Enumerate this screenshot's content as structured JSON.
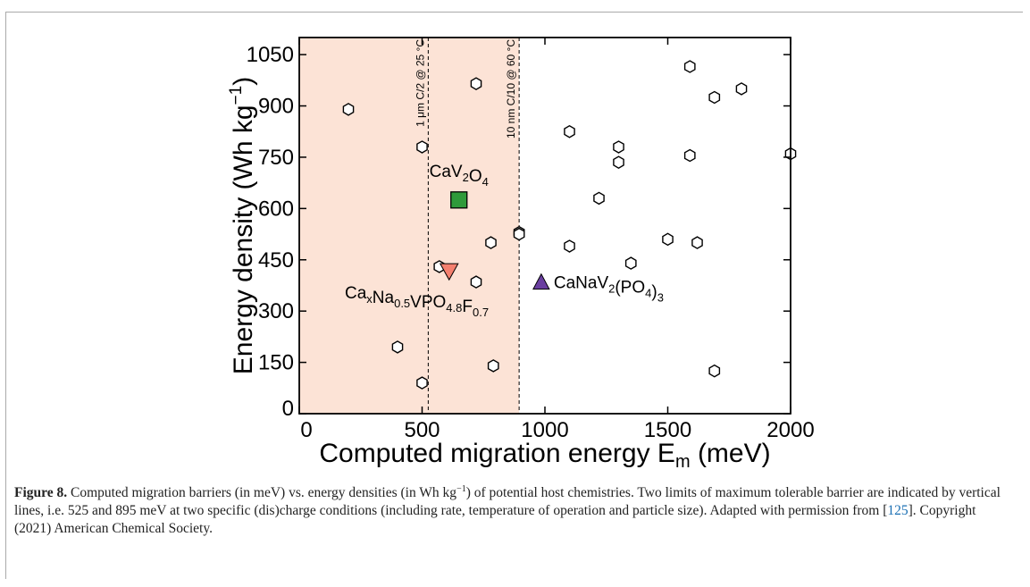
{
  "chart_data": {
    "type": "scatter",
    "xlabel_main": "Computed migration energy E",
    "xlabel_sub": "m",
    "xlabel_unit": "(meV)",
    "ylabel": "Energy density (Wh kg",
    "ylabel_sup": "−1",
    "ylabel_close": ")",
    "xlim": [
      0,
      2000
    ],
    "ylim": [
      0,
      1100
    ],
    "xticks": [
      0,
      500,
      1000,
      1500,
      2000
    ],
    "yticks": [
      0,
      150,
      300,
      450,
      600,
      750,
      900,
      1050
    ],
    "shaded_region": {
      "x_start": 0,
      "x_end": 895,
      "color": "#fce3d6"
    },
    "vertical_lines": [
      {
        "x": 525,
        "label": "1 μm C/2 @ 25 °C"
      },
      {
        "x": 895,
        "label": "10 nm C/10 @ 60 °C"
      }
    ],
    "series": [
      {
        "marker": "hexagon",
        "points": [
          {
            "x": 200,
            "y": 890
          },
          {
            "x": 400,
            "y": 195
          },
          {
            "x": 500,
            "y": 90
          },
          {
            "x": 500,
            "y": 780
          },
          {
            "x": 570,
            "y": 430
          },
          {
            "x": 720,
            "y": 965
          },
          {
            "x": 720,
            "y": 385
          },
          {
            "x": 780,
            "y": 500
          },
          {
            "x": 790,
            "y": 140
          },
          {
            "x": 895,
            "y": 530
          },
          {
            "x": 895,
            "y": 525
          },
          {
            "x": 1100,
            "y": 825
          },
          {
            "x": 1100,
            "y": 490
          },
          {
            "x": 1220,
            "y": 630
          },
          {
            "x": 1300,
            "y": 780
          },
          {
            "x": 1300,
            "y": 735
          },
          {
            "x": 1350,
            "y": 440
          },
          {
            "x": 1500,
            "y": 510
          },
          {
            "x": 1590,
            "y": 1015
          },
          {
            "x": 1590,
            "y": 755
          },
          {
            "x": 1620,
            "y": 500
          },
          {
            "x": 1690,
            "y": 925
          },
          {
            "x": 1690,
            "y": 125
          },
          {
            "x": 1800,
            "y": 950
          },
          {
            "x": 2000,
            "y": 760
          }
        ]
      },
      {
        "name": "CaV2O4",
        "marker": "square",
        "color": "#2e9a3a",
        "points": [
          {
            "x": 650,
            "y": 625
          }
        ]
      },
      {
        "name": "CaxNa0.5VPO4.8F0.7",
        "marker": "triangle-down",
        "color": "#f4806f",
        "points": [
          {
            "x": 610,
            "y": 415
          }
        ]
      },
      {
        "name": "CaNaV2(PO4)3",
        "marker": "triangle-up",
        "color": "#6a3fa0",
        "points": [
          {
            "x": 985,
            "y": 385
          }
        ]
      }
    ],
    "annotations": [
      {
        "text": "CaV",
        "sub": "2",
        "text2": "O",
        "sub2": "4"
      },
      {
        "parts": [
          [
            "Ca",
            ""
          ],
          [
            "x",
            "sub"
          ],
          [
            "Na",
            ""
          ],
          [
            "0.5",
            "sub"
          ],
          [
            "VPO",
            ""
          ],
          [
            "4.8",
            "sub"
          ],
          [
            "F",
            ""
          ],
          [
            "0.7",
            "sub"
          ]
        ]
      },
      {
        "parts": [
          [
            "CaNaV",
            ""
          ],
          [
            "2",
            "sub"
          ],
          [
            "(PO",
            ""
          ],
          [
            "4",
            "sub"
          ],
          [
            ")",
            ""
          ],
          [
            "3",
            "sub"
          ]
        ]
      }
    ]
  },
  "caption": {
    "label": "Figure 8.",
    "text_1": " Computed migration barriers (in meV) vs. energy densities (in Wh kg",
    "sup": "−1",
    "text_2": ") of potential host chemistries. Two limits of maximum tolerable barrier are indicated by vertical lines, i.e. 525 and 895 meV at two specific (dis)charge conditions (including rate, temperature of operation and particle size). Adapted with permission from [",
    "ref": "125",
    "text_3": "]. Copyright (2021) American Chemical Society."
  }
}
